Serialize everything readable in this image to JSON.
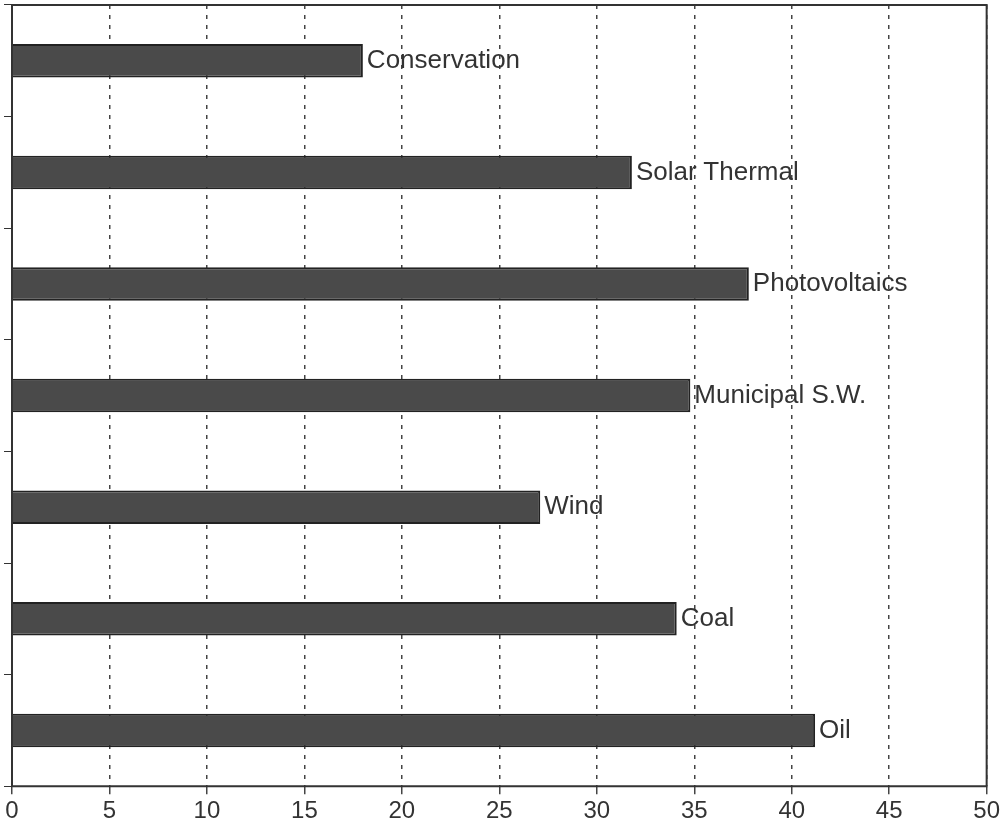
{
  "chart_data": {
    "type": "bar",
    "orientation": "horizontal",
    "categories": [
      "Conservation",
      "Solar Thermal",
      "Photovoltaics",
      "Municipal S.W.",
      "Wind",
      "Coal",
      "Oil"
    ],
    "values": [
      18.0,
      31.8,
      37.8,
      34.8,
      27.1,
      34.1,
      41.2
    ],
    "color": "#4a4a4a",
    "xlim": [
      0,
      50
    ],
    "xticks": [
      0,
      5,
      10,
      15,
      20,
      25,
      30,
      35,
      40,
      45,
      50
    ],
    "grid": "x"
  }
}
